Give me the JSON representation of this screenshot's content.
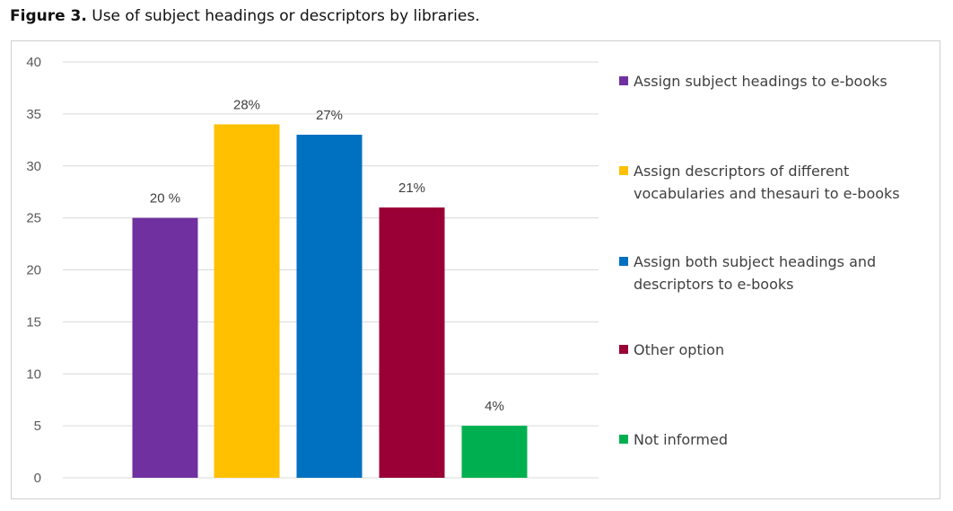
{
  "caption": {
    "label": "Figure 3.",
    "text": "Use of subject headings or descriptors by libraries."
  },
  "chart_data": {
    "type": "bar",
    "categories": [
      "Assign subject headings to e-books",
      "Assign descriptors of different vocabularies and thesauri to e-books",
      "Assign both subject headings and descriptors to e-books",
      "Other option",
      "Not informed"
    ],
    "values": [
      25,
      34,
      33,
      26,
      5
    ],
    "data_labels": [
      "20 %",
      "28%",
      "27%",
      "21%",
      "4%"
    ],
    "colors": [
      "#7030a0",
      "#ffc000",
      "#0070c0",
      "#9a0036",
      "#00b050"
    ],
    "ylim": [
      0,
      40
    ],
    "yticks": [
      0,
      5,
      10,
      15,
      20,
      25,
      30,
      35,
      40
    ],
    "grid": true,
    "legend": {
      "placement": "right",
      "entries": [
        {
          "lines": [
            "Assign subject headings to e-books"
          ],
          "color": "#7030a0"
        },
        {
          "lines": [
            "Assign descriptors of different",
            "vocabularies and thesauri to e-books"
          ],
          "color": "#ffc000"
        },
        {
          "lines": [
            "Assign both subject headings and",
            "descriptors to e-books"
          ],
          "color": "#0070c0"
        },
        {
          "lines": [
            "Other option"
          ],
          "color": "#9a0036"
        },
        {
          "lines": [
            "Not informed"
          ],
          "color": "#00b050"
        }
      ]
    }
  }
}
